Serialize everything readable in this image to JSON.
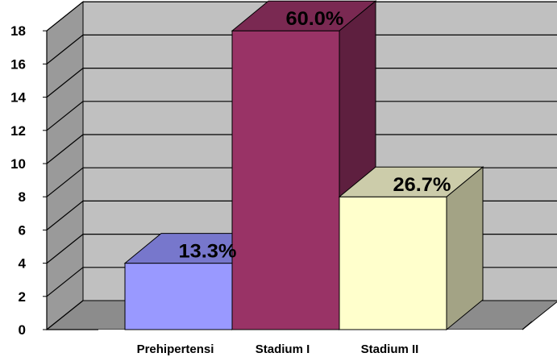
{
  "chart_data": {
    "type": "bar",
    "three_d": true,
    "categories": [
      "Prehipertensi",
      "Stadium I",
      "Stadium II"
    ],
    "values": [
      4,
      18,
      8
    ],
    "data_labels": [
      "13.3%",
      "60.0%",
      "26.7%"
    ],
    "yticks": [
      "0",
      "2",
      "4",
      "6",
      "8",
      "10",
      "12",
      "14",
      "16",
      "18"
    ],
    "ylim": [
      0,
      18
    ],
    "grid": true,
    "legend": "none",
    "colors": {
      "bars": [
        "#9999ff",
        "#993366",
        "#ffffcc"
      ],
      "bar_tops": [
        "#7777cc",
        "#7a2952",
        "#ccccaa"
      ],
      "bar_sides": [
        "#666699",
        "#5e1f3f",
        "#a3a385"
      ],
      "wall": "#c0c0c0",
      "side_wall": "#9a9a9a",
      "floor": "#8c8c8c",
      "grid": "#000000"
    }
  }
}
